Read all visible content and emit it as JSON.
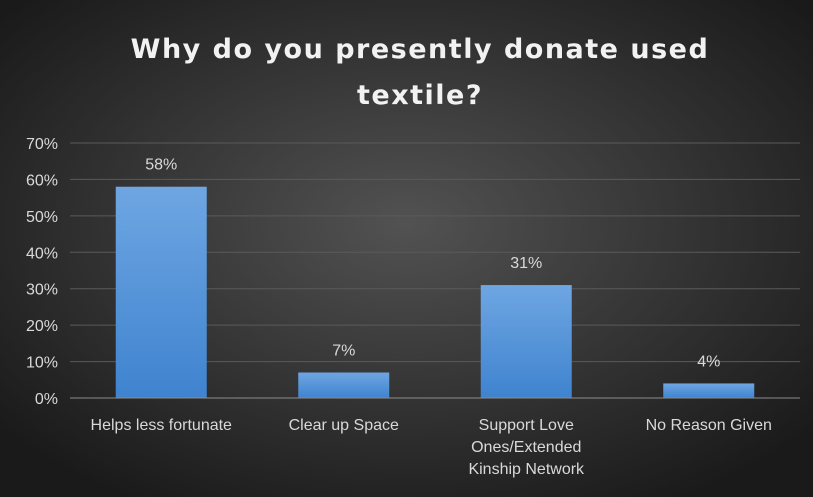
{
  "chart_data": {
    "type": "bar",
    "title_lines": [
      "Why do you presently donate used",
      "textile?"
    ],
    "categories": [
      [
        "Helps less fortunate"
      ],
      [
        "Clear up Space"
      ],
      [
        "Support Love",
        "Ones/Extended",
        "Kinship Network"
      ],
      [
        "No Reason Given"
      ]
    ],
    "values": [
      58,
      7,
      31,
      4
    ],
    "data_labels": [
      "58%",
      "7%",
      "31%",
      "4%"
    ],
    "yticks": [
      0,
      10,
      20,
      30,
      40,
      50,
      60,
      70
    ],
    "ytick_labels": [
      "0%",
      "10%",
      "20%",
      "30%",
      "40%",
      "50%",
      "60%",
      "70%"
    ],
    "ylim": [
      0,
      70
    ],
    "grid": true,
    "legend": "none",
    "colors": {
      "bar_top": "#6ea6e2",
      "bar_bottom": "#3f83cf",
      "background_center": "#525252",
      "background_edge": "#1a1a1a"
    }
  }
}
